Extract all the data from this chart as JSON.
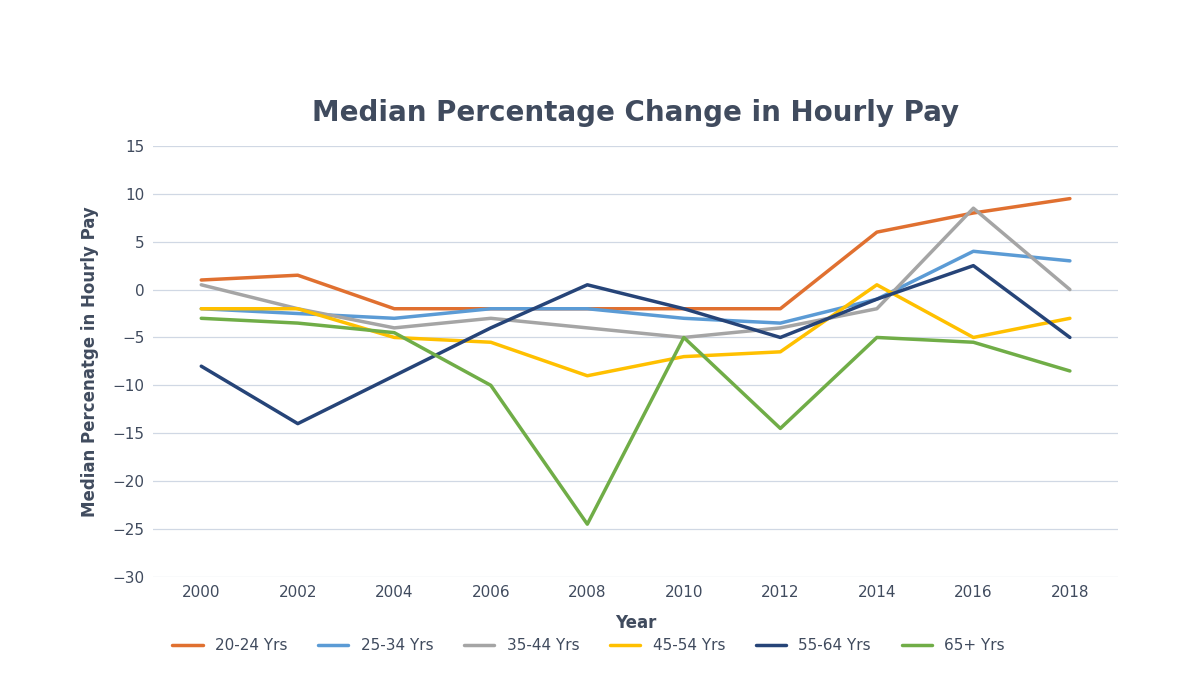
{
  "title": "Median Percentage Change in Hourly Pay",
  "xlabel": "Year",
  "ylabel": "Median Percenatge in Hourly Pay",
  "years": [
    2000,
    2002,
    2004,
    2006,
    2008,
    2010,
    2012,
    2014,
    2016,
    2018
  ],
  "series": {
    "20-24 Yrs": {
      "values": [
        1,
        1.5,
        -2,
        -2,
        -2,
        -2,
        -2,
        6,
        8,
        9.5
      ],
      "color": "#E07030"
    },
    "25-34 Yrs": {
      "values": [
        -2,
        -2.5,
        -3,
        -2,
        -2,
        -3,
        -3.5,
        -1,
        4,
        3
      ],
      "color": "#5B9BD5"
    },
    "35-44 Yrs": {
      "values": [
        0.5,
        -2,
        -4,
        -3,
        -4,
        -5,
        -4,
        -2,
        8.5,
        0
      ],
      "color": "#A5A5A5"
    },
    "45-54 Yrs": {
      "values": [
        -2,
        -2,
        -5,
        -5.5,
        -9,
        -7,
        -6.5,
        0.5,
        -5,
        -3
      ],
      "color": "#FFC000"
    },
    "55-64 Yrs": {
      "values": [
        -8,
        -14,
        -9,
        -4,
        0.5,
        -2,
        -5,
        -1,
        2.5,
        -5
      ],
      "color": "#264478"
    },
    "65+ Yrs": {
      "values": [
        -3,
        -3.5,
        -4.5,
        -10,
        -24.5,
        -5,
        -14.5,
        -5,
        -5.5,
        -8.5
      ],
      "color": "#70AD47"
    }
  },
  "ylim": [
    -30,
    15
  ],
  "yticks": [
    15,
    10,
    5,
    0,
    -5,
    -10,
    -15,
    -20,
    -25,
    -30
  ],
  "xlim": [
    1999,
    2019
  ],
  "xticks": [
    2000,
    2002,
    2004,
    2006,
    2008,
    2010,
    2012,
    2014,
    2016,
    2018
  ],
  "background_color": "#FFFFFF",
  "grid_color": "#D0D8E4",
  "text_color": "#404B5E",
  "line_width": 2.5,
  "title_fontsize": 20,
  "axis_label_fontsize": 12,
  "tick_fontsize": 11,
  "legend_fontsize": 11
}
